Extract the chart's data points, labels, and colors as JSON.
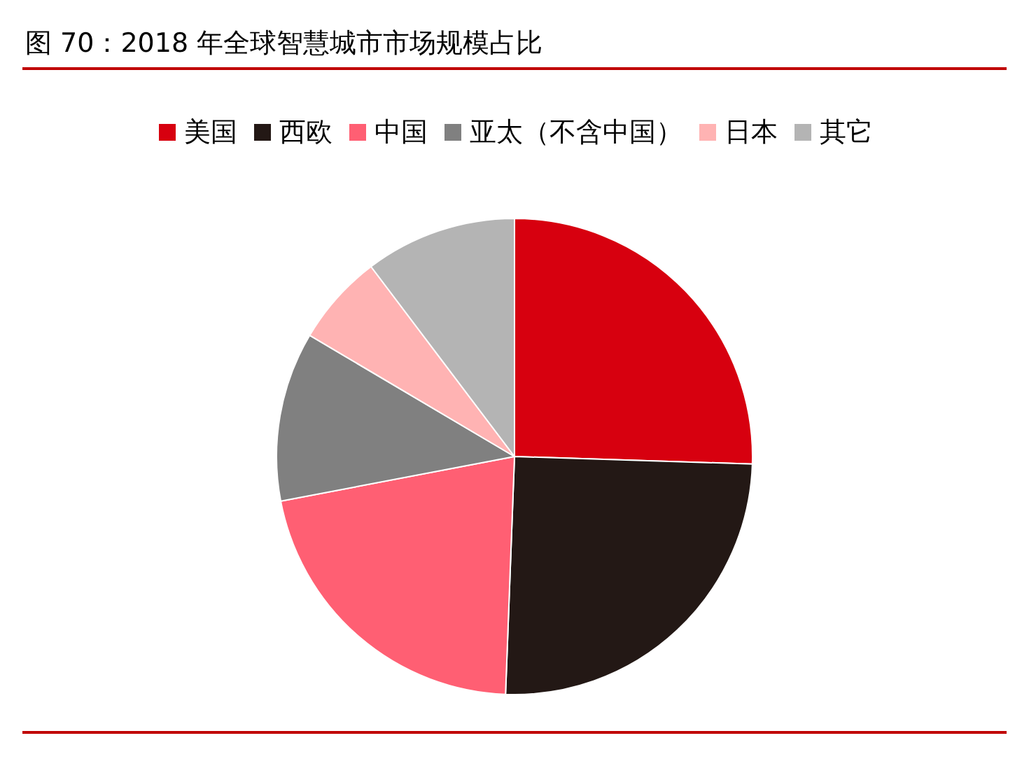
{
  "chart_data": {
    "type": "pie",
    "title": "图 70：2018 年全球智慧城市市场规模占比",
    "categories": [
      "美国",
      "西欧",
      "中国",
      "亚太（不含中国）",
      "日本",
      "其它"
    ],
    "values": [
      25.5,
      25.1,
      21.4,
      11.5,
      6.2,
      10.3
    ],
    "colors": [
      "#d7000f",
      "#231815",
      "#ff5f73",
      "#808080",
      "#ffb3b3",
      "#b4b4b4"
    ],
    "legend": "top"
  }
}
